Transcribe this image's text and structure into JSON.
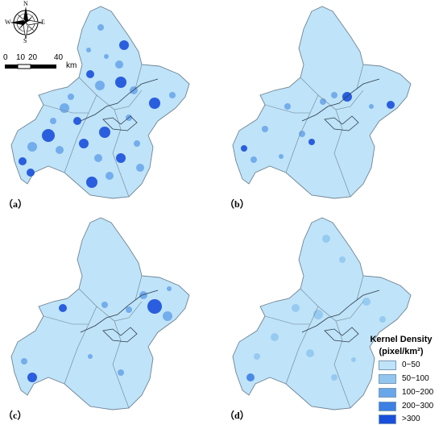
{
  "compass": {
    "n": "N",
    "s": "S",
    "e": "E",
    "w": "W"
  },
  "scale_bar": {
    "ticks": [
      "0",
      "10",
      "20",
      "40"
    ],
    "unit": "km"
  },
  "panels": [
    {
      "label": "（a）"
    },
    {
      "label": "（b）"
    },
    {
      "label": "（c）"
    },
    {
      "label": "（d）"
    }
  ],
  "legend": {
    "title": "Kernel Density",
    "unit": "(pixel/km²)",
    "items": [
      {
        "label": "0~50",
        "color": "#bfe3f8"
      },
      {
        "label": "50~100",
        "color": "#92c6ef"
      },
      {
        "label": "100~200",
        "color": "#6aa6ea"
      },
      {
        "label": "200~300",
        "color": "#3d7fe3"
      },
      {
        "label": ">300",
        "color": "#1a4fdc"
      }
    ]
  },
  "colors": {
    "base_fill": "#bfe3f8",
    "boundary": "#6e8494",
    "river": "#2b3b4a"
  }
}
